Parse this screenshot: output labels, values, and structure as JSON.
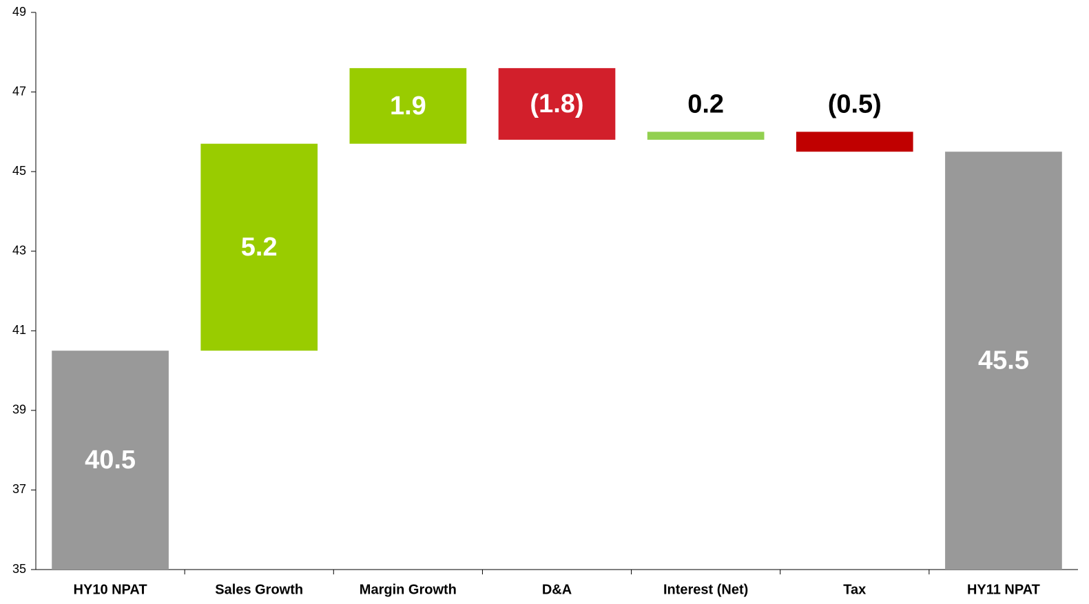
{
  "chart_data": {
    "type": "waterfall",
    "categories": [
      "HY10 NPAT",
      "Sales Growth",
      "Margin Growth",
      "D&A",
      "Interest (Net)",
      "Tax",
      "HY11 NPAT"
    ],
    "values": [
      40.5,
      5.2,
      1.9,
      -1.8,
      0.2,
      -0.5,
      45.5
    ],
    "value_labels": [
      "40.5",
      "5.2",
      "1.9",
      "(1.8)",
      "0.2",
      "(0.5)",
      "45.5"
    ],
    "measures": [
      "absolute",
      "relative",
      "relative",
      "relative",
      "relative",
      "relative",
      "total"
    ],
    "colors": [
      "#999999",
      "#99cc00",
      "#99cc00",
      "#d21f2b",
      "#92d050",
      "#c00000",
      "#999999"
    ],
    "ylim": [
      35,
      49
    ],
    "yticks": [
      35,
      37,
      39,
      41,
      43,
      45,
      47,
      49
    ],
    "grid": false
  }
}
